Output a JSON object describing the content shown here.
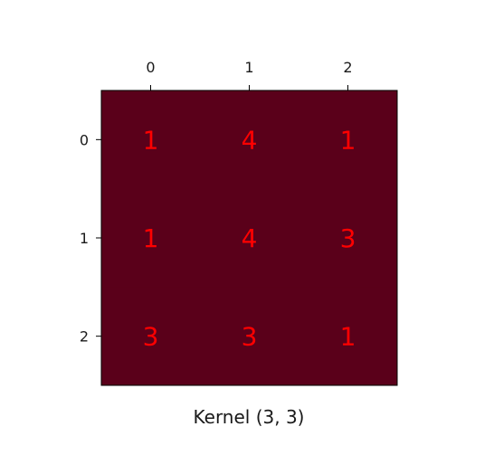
{
  "chart_data": {
    "type": "heatmap",
    "title": "",
    "xlabel": "Kernel (3, 3)",
    "ylabel": "",
    "x_ticks": [
      "0",
      "1",
      "2"
    ],
    "y_ticks": [
      "0",
      "1",
      "2"
    ],
    "values": [
      [
        1,
        4,
        1
      ],
      [
        1,
        4,
        3
      ],
      [
        3,
        3,
        1
      ]
    ],
    "cell_color": "#5a001a",
    "annotation_color": "#ff0000",
    "x_axis_position": "top",
    "grid": false,
    "legend": "none"
  }
}
